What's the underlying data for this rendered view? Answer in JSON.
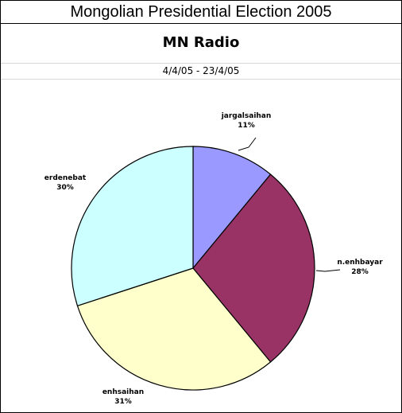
{
  "header": {
    "title": "Mongolian Presidential Election 2005",
    "subtitle": "MN Radio",
    "date_range": "4/4/05 - 23/4/05"
  },
  "chart_data": {
    "type": "pie",
    "start_angle_deg": 0,
    "direction": "clockwise",
    "slices": [
      {
        "name": "jargalsaihan",
        "value": 11,
        "label": "11%",
        "color": "#9999ff"
      },
      {
        "name": "n.enhbayar",
        "value": 28,
        "label": "28%",
        "color": "#993366"
      },
      {
        "name": "enhsaihan",
        "value": 31,
        "label": "31%",
        "color": "#ffffcc"
      },
      {
        "name": "erdenebat",
        "value": 30,
        "label": "30%",
        "color": "#ccffff"
      }
    ]
  }
}
